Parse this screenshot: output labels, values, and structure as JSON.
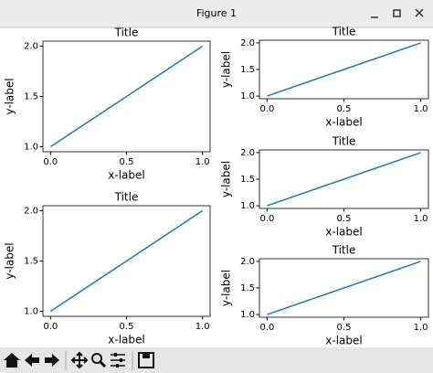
{
  "window": {
    "title": "Figure 1"
  },
  "chart_data": [
    {
      "type": "line",
      "title": "Title",
      "x_label": "x-label",
      "y_label": "y-label",
      "x": [
        0,
        1
      ],
      "series": [
        {
          "color": "#1f77b4",
          "values": [
            1,
            2
          ]
        }
      ],
      "xlim": [
        -0.05,
        1.05
      ],
      "ylim": [
        0.95,
        2.05
      ],
      "xticks": [
        {
          "value": 0,
          "label": "0.0"
        },
        {
          "value": 0.5,
          "label": "0.5"
        },
        {
          "value": 1,
          "label": "1.0"
        }
      ],
      "yticks": [
        {
          "value": 1,
          "label": "1.0"
        },
        {
          "value": 1.5,
          "label": "1.5"
        },
        {
          "value": 2,
          "label": "2.0"
        }
      ]
    },
    {
      "type": "line",
      "title": "Title",
      "x_label": "x-label",
      "y_label": "y-label",
      "x": [
        0,
        1
      ],
      "series": [
        {
          "color": "#1f77b4",
          "values": [
            1,
            2
          ]
        }
      ],
      "xlim": [
        -0.05,
        1.05
      ],
      "ylim": [
        0.95,
        2.05
      ],
      "xticks": [
        {
          "value": 0,
          "label": "0.0"
        },
        {
          "value": 0.5,
          "label": "0.5"
        },
        {
          "value": 1,
          "label": "1.0"
        }
      ],
      "yticks": [
        {
          "value": 1,
          "label": "1.0"
        },
        {
          "value": 1.5,
          "label": "1.5"
        },
        {
          "value": 2,
          "label": "2.0"
        }
      ]
    },
    {
      "type": "line",
      "title": "Title",
      "x_label": "x-label",
      "y_label": "y-label",
      "x": [
        0,
        1
      ],
      "series": [
        {
          "color": "#1f77b4",
          "values": [
            1,
            2
          ]
        }
      ],
      "xlim": [
        -0.05,
        1.05
      ],
      "ylim": [
        0.95,
        2.05
      ],
      "xticks": [
        {
          "value": 0,
          "label": "0.0"
        },
        {
          "value": 0.5,
          "label": "0.5"
        },
        {
          "value": 1,
          "label": "1.0"
        }
      ],
      "yticks": [
        {
          "value": 1,
          "label": "1.0"
        },
        {
          "value": 1.5,
          "label": "1.5"
        },
        {
          "value": 2,
          "label": "2.0"
        }
      ]
    },
    {
      "type": "line",
      "title": "Title",
      "x_label": "x-label",
      "y_label": "y-label",
      "x": [
        0,
        1
      ],
      "series": [
        {
          "color": "#1f77b4",
          "values": [
            1,
            2
          ]
        }
      ],
      "xlim": [
        -0.05,
        1.05
      ],
      "ylim": [
        0.95,
        2.05
      ],
      "xticks": [
        {
          "value": 0,
          "label": "0.0"
        },
        {
          "value": 0.5,
          "label": "0.5"
        },
        {
          "value": 1,
          "label": "1.0"
        }
      ],
      "yticks": [
        {
          "value": 1,
          "label": "1.0"
        },
        {
          "value": 1.5,
          "label": "1.5"
        },
        {
          "value": 2,
          "label": "2.0"
        }
      ]
    },
    {
      "type": "line",
      "title": "Title",
      "x_label": "x-label",
      "y_label": "y-label",
      "x": [
        0,
        1
      ],
      "series": [
        {
          "color": "#1f77b4",
          "values": [
            1,
            2
          ]
        }
      ],
      "xlim": [
        -0.05,
        1.05
      ],
      "ylim": [
        0.95,
        2.05
      ],
      "xticks": [
        {
          "value": 0,
          "label": "0.0"
        },
        {
          "value": 0.5,
          "label": "0.5"
        },
        {
          "value": 1,
          "label": "1.0"
        }
      ],
      "yticks": [
        {
          "value": 1,
          "label": "1.0"
        },
        {
          "value": 1.5,
          "label": "1.5"
        },
        {
          "value": 2,
          "label": "2.0"
        }
      ]
    }
  ]
}
